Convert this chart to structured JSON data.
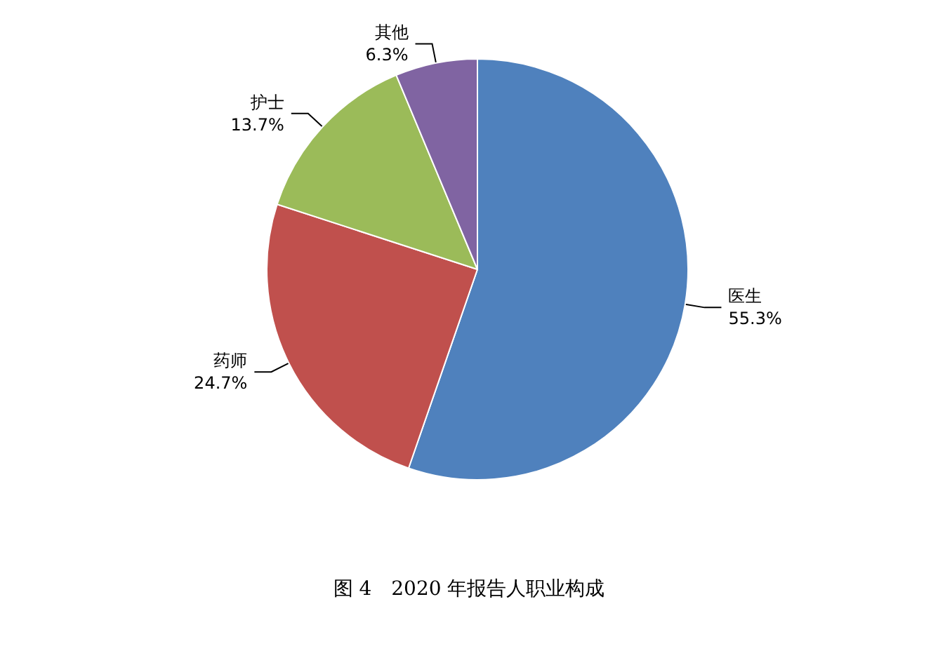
{
  "chart_data": {
    "type": "pie",
    "title": "图 4　2020 年报告人职业构成",
    "categories": [
      "医生",
      "药师",
      "护士",
      "其他"
    ],
    "values": [
      55.3,
      24.7,
      13.7,
      6.3
    ],
    "colors": [
      "#4f81bd",
      "#c0504d",
      "#9bbb59",
      "#8064a2"
    ],
    "value_labels": [
      "55.3%",
      "24.7%",
      "13.7%",
      "6.3%"
    ],
    "legend": false
  }
}
